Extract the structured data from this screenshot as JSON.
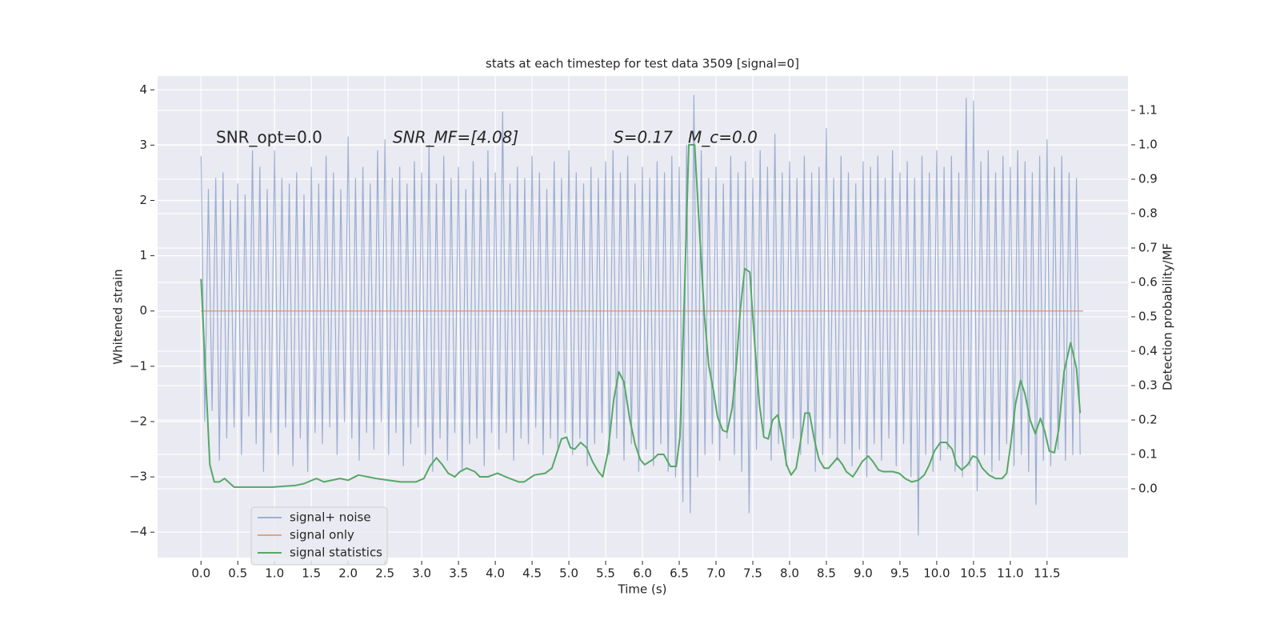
{
  "chart_data": {
    "type": "line",
    "title": "stats at each timestep for test data 3509 [signal=0]",
    "xlabel": "Time (s)",
    "ylabel": "Whitened strain",
    "y2label": "Detection probability/MF",
    "annotations": [
      "SNR_opt=0.0",
      "SNR_MF=[4.08]",
      "S=0.17",
      "M_c=0.0"
    ],
    "xlim": [
      -0.59,
      12.6
    ],
    "ylim": [
      -4.46,
      4.25
    ],
    "y2lim": [
      -0.2,
      1.2
    ],
    "xticks": [
      {
        "value": 0,
        "label": "0.0"
      },
      0.5,
      {
        "value": 1,
        "label": "1.0"
      },
      1.5,
      {
        "value": 2,
        "label": "2.0"
      },
      2.5,
      {
        "value": 3,
        "label": "3.0"
      },
      3.5,
      {
        "value": 4,
        "label": "4.0"
      },
      4.5,
      {
        "value": 5,
        "label": "5.0"
      },
      5.5,
      {
        "value": 6,
        "label": "6.0"
      },
      6.5,
      {
        "value": 7,
        "label": "7.0"
      },
      7.5,
      {
        "value": 8,
        "label": "8.0"
      },
      8.5,
      {
        "value": 9,
        "label": "9.0"
      },
      9.5,
      {
        "value": 10,
        "label": "10.0"
      },
      10.5,
      {
        "value": 11,
        "label": "11.0"
      },
      11.5
    ],
    "yticks": [
      {
        "value": -4,
        "label": "−4"
      },
      {
        "value": -3,
        "label": "−3"
      },
      {
        "value": -2,
        "label": "−2"
      },
      {
        "value": -1,
        "label": "−1"
      },
      0,
      1,
      2,
      3,
      4
    ],
    "y2ticks": [
      {
        "value": 0,
        "label": "0.0"
      },
      0.1,
      0.2,
      0.3,
      0.4,
      0.5,
      0.6,
      0.7,
      0.8,
      0.9,
      {
        "value": 1,
        "label": "1.0"
      },
      1.1
    ],
    "grid": true,
    "legend": "lower left",
    "series": [
      {
        "name": "signal+ noise",
        "color": "#4c72b0",
        "x": [
          0,
          0.05,
          0.1,
          0.15,
          0.2,
          0.25,
          0.3,
          0.35,
          0.4,
          0.45,
          0.5,
          0.55,
          0.6,
          0.65,
          0.7,
          0.75,
          0.8,
          0.85,
          0.9,
          0.95,
          1,
          1.05,
          1.1,
          1.15,
          1.2,
          1.25,
          1.3,
          1.35,
          1.4,
          1.45,
          1.5,
          1.55,
          1.6,
          1.65,
          1.7,
          1.75,
          1.8,
          1.85,
          1.9,
          1.95,
          2,
          2.05,
          2.1,
          2.15,
          2.2,
          2.25,
          2.3,
          2.35,
          2.4,
          2.45,
          2.5,
          2.55,
          2.6,
          2.65,
          2.7,
          2.75,
          2.8,
          2.85,
          2.9,
          2.95,
          3,
          3.05,
          3.1,
          3.15,
          3.2,
          3.25,
          3.3,
          3.35,
          3.4,
          3.45,
          3.5,
          3.55,
          3.6,
          3.65,
          3.7,
          3.75,
          3.8,
          3.85,
          3.9,
          3.95,
          4,
          4.05,
          4.1,
          4.15,
          4.2,
          4.25,
          4.3,
          4.35,
          4.4,
          4.45,
          4.5,
          4.55,
          4.6,
          4.65,
          4.7,
          4.75,
          4.8,
          4.85,
          4.9,
          4.95,
          5,
          5.05,
          5.1,
          5.15,
          5.2,
          5.25,
          5.3,
          5.35,
          5.4,
          5.45,
          5.5,
          5.55,
          5.6,
          5.65,
          5.7,
          5.75,
          5.8,
          5.85,
          5.9,
          5.95,
          6,
          6.05,
          6.1,
          6.15,
          6.2,
          6.25,
          6.3,
          6.35,
          6.4,
          6.45,
          6.5,
          6.55,
          6.6,
          6.65,
          6.7,
          6.75,
          6.8,
          6.85,
          6.9,
          6.95,
          7,
          7.05,
          7.1,
          7.15,
          7.2,
          7.25,
          7.3,
          7.35,
          7.4,
          7.45,
          7.5,
          7.55,
          7.6,
          7.65,
          7.7,
          7.75,
          7.8,
          7.85,
          7.9,
          7.95,
          8,
          8.05,
          8.1,
          8.15,
          8.2,
          8.25,
          8.3,
          8.35,
          8.4,
          8.45,
          8.5,
          8.55,
          8.6,
          8.65,
          8.7,
          8.75,
          8.8,
          8.85,
          8.9,
          8.95,
          9,
          9.05,
          9.1,
          9.15,
          9.2,
          9.25,
          9.3,
          9.35,
          9.4,
          9.45,
          9.5,
          9.55,
          9.6,
          9.65,
          9.7,
          9.75,
          9.8,
          9.85,
          9.9,
          9.95,
          10,
          10.05,
          10.1,
          10.15,
          10.2,
          10.25,
          10.3,
          10.35,
          10.4,
          10.45,
          10.5,
          10.55,
          10.6,
          10.65,
          10.7,
          10.75,
          10.8,
          10.85,
          10.9,
          10.95,
          11,
          11.05,
          11.1,
          11.15,
          11.2,
          11.25,
          11.3,
          11.35,
          11.4,
          11.45,
          11.5,
          11.55,
          11.6,
          11.65,
          11.7,
          11.75,
          11.8,
          11.85,
          11.9,
          11.95
        ],
        "values": [
          2.8,
          -2.0,
          2.2,
          -1.8,
          2.4,
          -2.7,
          2.5,
          -2.3,
          2.0,
          -2.1,
          2.3,
          -2.6,
          2.1,
          -1.9,
          2.9,
          -2.4,
          2.6,
          -2.9,
          2.2,
          -2.2,
          2.9,
          -2.6,
          2.4,
          -2.1,
          2.3,
          -2.8,
          2.5,
          -2.3,
          2.1,
          -2.9,
          2.6,
          -2.2,
          2.3,
          -2.4,
          2.8,
          -2.1,
          2.5,
          -2.6,
          2.2,
          -2.0,
          3.15,
          -2.3,
          2.4,
          -2.7,
          2.6,
          -2.2,
          2.3,
          -2.5,
          2.9,
          -2.0,
          3.1,
          -2.6,
          2.4,
          -2.2,
          2.6,
          -2.8,
          2.3,
          -2.4,
          2.7,
          -2.1,
          2.5,
          -2.6,
          3.0,
          -2.9,
          2.3,
          -2.3,
          2.8,
          -2.7,
          2.4,
          -2.2,
          2.6,
          -2.9,
          2.2,
          -2.4,
          2.7,
          -2.3,
          2.4,
          -2.8,
          2.9,
          -2.2,
          2.5,
          -2.5,
          3.6,
          -2.2,
          2.3,
          -2.7,
          2.6,
          -2.3,
          2.4,
          -2.4,
          2.8,
          -2.1,
          2.5,
          -2.6,
          2.2,
          -2.3,
          2.7,
          -2.5,
          2.4,
          -2.2,
          2.9,
          -2.6,
          2.5,
          -2.3,
          2.3,
          -2.8,
          2.6,
          -2.4,
          2.4,
          -2.2,
          2.7,
          -2.6,
          2.9,
          -2.3,
          2.5,
          -2.7,
          2.8,
          -2.4,
          2.3,
          -2.9,
          2.6,
          -2.5,
          2.4,
          -2.8,
          2.7,
          -2.4,
          2.5,
          -2.9,
          2.8,
          -3.0,
          2.6,
          -3.45,
          3.0,
          -3.65,
          3.9,
          -3.0,
          2.9,
          -2.6,
          2.4,
          -2.4,
          2.6,
          -2.7,
          2.3,
          -2.3,
          2.8,
          -2.6,
          2.5,
          -2.9,
          2.7,
          -3.65,
          2.4,
          -2.5,
          2.9,
          -2.2,
          2.6,
          -2.7,
          3.2,
          -2.4,
          2.5,
          -2.8,
          2.7,
          -2.3,
          2.4,
          -2.6,
          2.8,
          -2.4,
          2.5,
          -2.9,
          2.6,
          -2.6,
          3.3,
          -2.3,
          2.4,
          -2.7,
          2.8,
          -2.4,
          2.5,
          -2.8,
          2.3,
          -2.5,
          2.7,
          -3.0,
          2.6,
          -2.4,
          2.8,
          -2.7,
          2.4,
          -2.3,
          2.9,
          -2.8,
          2.5,
          -2.4,
          2.7,
          -3.0,
          2.4,
          -4.05,
          2.8,
          -2.6,
          2.5,
          -2.9,
          2.9,
          -2.7,
          2.6,
          -2.5,
          2.8,
          -2.9,
          2.5,
          -3.0,
          3.85,
          -2.8,
          3.8,
          -3.25,
          2.7,
          -2.6,
          2.9,
          -2.9,
          2.5,
          -2.7,
          2.8,
          -2.4,
          2.6,
          -2.8,
          2.9,
          -2.6,
          2.7,
          -2.9,
          2.5,
          -3.5,
          2.8,
          -2.7,
          3.1,
          -2.8,
          2.6,
          -2.5,
          2.8,
          -2.7,
          2.5,
          -2.6,
          2.4,
          -2.6
        ]
      },
      {
        "name": "signal only",
        "color": "#dd8452",
        "x": [
          0,
          11.99
        ],
        "values": [
          0,
          0
        ]
      },
      {
        "name": "signal statistics",
        "color": "#55a868",
        "axis": "y2",
        "x": [
          0,
          0.12,
          0.18,
          0.25,
          0.32,
          0.45,
          0.64,
          0.97,
          1.29,
          1.4,
          1.57,
          1.67,
          1.89,
          2.0,
          2.14,
          2.38,
          2.71,
          2.92,
          3.03,
          3.11,
          3.2,
          3.28,
          3.36,
          3.45,
          3.52,
          3.61,
          3.72,
          3.79,
          3.9,
          4.03,
          4.14,
          4.32,
          4.39,
          4.53,
          4.68,
          4.77,
          4.9,
          4.97,
          5.02,
          5.08,
          5.16,
          5.24,
          5.32,
          5.4,
          5.46,
          5.53,
          5.61,
          5.68,
          5.75,
          5.83,
          5.9,
          5.97,
          6.03,
          6.14,
          6.21,
          6.29,
          6.38,
          6.46,
          6.51,
          6.57,
          6.63,
          6.71,
          6.77,
          6.84,
          6.9,
          6.97,
          7.02,
          7.09,
          7.15,
          7.22,
          7.27,
          7.33,
          7.39,
          7.46,
          7.52,
          7.59,
          7.65,
          7.71,
          7.77,
          7.84,
          7.9,
          7.96,
          8.02,
          8.09,
          8.15,
          8.21,
          8.27,
          8.34,
          8.4,
          8.47,
          8.53,
          8.59,
          8.65,
          8.72,
          8.77,
          8.86,
          8.92,
          8.99,
          9.07,
          9.13,
          9.21,
          9.27,
          9.4,
          9.49,
          9.57,
          9.66,
          9.75,
          9.83,
          9.9,
          9.97,
          10.05,
          10.13,
          10.21,
          10.27,
          10.34,
          10.42,
          10.49,
          10.55,
          10.62,
          10.71,
          10.8,
          10.89,
          10.95,
          11.0,
          11.07,
          11.14,
          11.2,
          11.27,
          11.34,
          11.41,
          11.47,
          11.53,
          11.6,
          11.66,
          11.73,
          11.82,
          11.9,
          11.95
        ],
        "values": [
          0.61,
          0.07,
          0.02,
          0.02,
          0.03,
          0.005,
          0.005,
          0.005,
          0.01,
          0.015,
          0.03,
          0.02,
          0.03,
          0.025,
          0.04,
          0.03,
          0.02,
          0.02,
          0.03,
          0.065,
          0.09,
          0.07,
          0.045,
          0.035,
          0.05,
          0.06,
          0.05,
          0.035,
          0.035,
          0.045,
          0.035,
          0.02,
          0.02,
          0.04,
          0.045,
          0.06,
          0.145,
          0.15,
          0.12,
          0.115,
          0.135,
          0.12,
          0.08,
          0.05,
          0.035,
          0.105,
          0.26,
          0.34,
          0.31,
          0.2,
          0.13,
          0.085,
          0.07,
          0.085,
          0.1,
          0.1,
          0.065,
          0.065,
          0.15,
          0.56,
          1.0,
          1.0,
          0.77,
          0.51,
          0.36,
          0.28,
          0.21,
          0.17,
          0.165,
          0.235,
          0.34,
          0.52,
          0.64,
          0.63,
          0.44,
          0.245,
          0.15,
          0.145,
          0.2,
          0.215,
          0.15,
          0.07,
          0.04,
          0.06,
          0.14,
          0.22,
          0.22,
          0.14,
          0.085,
          0.06,
          0.06,
          0.075,
          0.09,
          0.07,
          0.05,
          0.035,
          0.055,
          0.08,
          0.095,
          0.08,
          0.055,
          0.05,
          0.05,
          0.045,
          0.03,
          0.02,
          0.025,
          0.04,
          0.07,
          0.11,
          0.135,
          0.135,
          0.115,
          0.07,
          0.055,
          0.07,
          0.095,
          0.09,
          0.06,
          0.04,
          0.03,
          0.03,
          0.045,
          0.12,
          0.245,
          0.315,
          0.275,
          0.2,
          0.16,
          0.205,
          0.165,
          0.11,
          0.105,
          0.175,
          0.34,
          0.425,
          0.35,
          0.22
        ]
      }
    ]
  }
}
